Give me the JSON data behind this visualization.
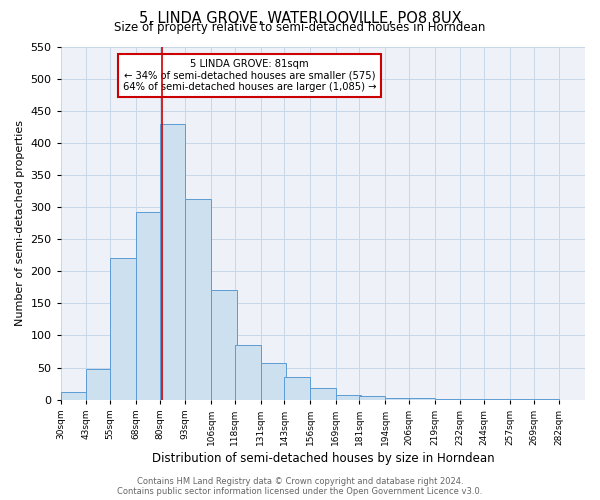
{
  "title": "5, LINDA GROVE, WATERLOOVILLE, PO8 8UX",
  "subtitle": "Size of property relative to semi-detached houses in Horndean",
  "xlabel": "Distribution of semi-detached houses by size in Horndean",
  "ylabel": "Number of semi-detached properties",
  "footer_line1": "Contains HM Land Registry data © Crown copyright and database right 2024.",
  "footer_line2": "Contains public sector information licensed under the Open Government Licence v3.0.",
  "bar_left_edges": [
    30,
    43,
    55,
    68,
    80,
    93,
    106,
    118,
    131,
    143,
    156,
    169,
    181,
    194,
    206,
    219,
    232,
    244,
    257,
    269
  ],
  "bar_heights": [
    12,
    48,
    220,
    293,
    430,
    312,
    170,
    85,
    57,
    35,
    18,
    7,
    5,
    3,
    2,
    1,
    1,
    1,
    1,
    1
  ],
  "bin_width": 13,
  "bar_facecolor": "#cce0f0",
  "bar_edgecolor": "#5b9bd5",
  "grid_color": "#c8d8e8",
  "bg_color": "#eef2f8",
  "property_value": 81,
  "property_line_color": "#cc0000",
  "annotation_line1": "5 LINDA GROVE: 81sqm",
  "annotation_line2": "← 34% of semi-detached houses are smaller (575)",
  "annotation_line3": "64% of semi-detached houses are larger (1,085) →",
  "annotation_box_color": "#cc0000",
  "ylim": [
    0,
    550
  ],
  "yticks": [
    0,
    50,
    100,
    150,
    200,
    250,
    300,
    350,
    400,
    450,
    500,
    550
  ],
  "xtick_labels": [
    "30sqm",
    "43sqm",
    "55sqm",
    "68sqm",
    "80sqm",
    "93sqm",
    "106sqm",
    "118sqm",
    "131sqm",
    "143sqm",
    "156sqm",
    "169sqm",
    "181sqm",
    "194sqm",
    "206sqm",
    "219sqm",
    "232sqm",
    "244sqm",
    "257sqm",
    "269sqm",
    "282sqm"
  ]
}
